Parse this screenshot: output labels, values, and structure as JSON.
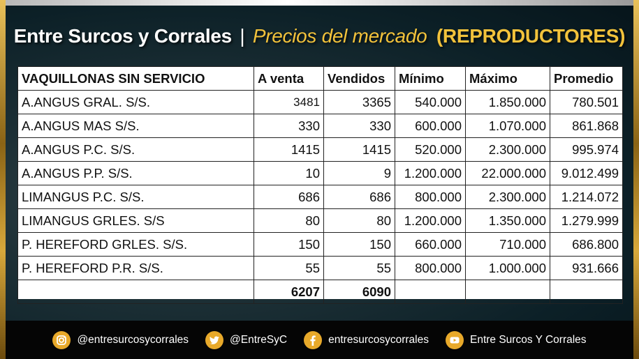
{
  "title": {
    "brand": "Entre Surcos y Corrales",
    "separator": "|",
    "subtitle": "Precios del mercado",
    "tag": "(REPRODUCTORES)"
  },
  "table": {
    "headers": [
      "VAQUILLONAS SIN SERVICIO",
      "A venta",
      "Vendidos",
      "Mínimo",
      "Máximo",
      "Promedio"
    ],
    "rows": [
      {
        "name": "A.ANGUS GRAL. S/S.",
        "a_venta": "3481",
        "vendidos": "3365",
        "minimo": "540.000",
        "maximo": "1.850.000",
        "promedio": "780.501"
      },
      {
        "name": "A.ANGUS MAS S/S.",
        "a_venta": "330",
        "vendidos": "330",
        "minimo": "600.000",
        "maximo": "1.070.000",
        "promedio": "861.868"
      },
      {
        "name": "A.ANGUS P.C. S/S.",
        "a_venta": "1415",
        "vendidos": "1415",
        "minimo": "520.000",
        "maximo": "2.300.000",
        "promedio": "995.974"
      },
      {
        "name": "A.ANGUS P.P. S/S.",
        "a_venta": "10",
        "vendidos": "9",
        "minimo": "1.200.000",
        "maximo": "22.000.000",
        "promedio": "9.012.499"
      },
      {
        "name": "LIMANGUS P.C. S/S.",
        "a_venta": "686",
        "vendidos": "686",
        "minimo": "800.000",
        "maximo": "2.300.000",
        "promedio": "1.214.072"
      },
      {
        "name": "LIMANGUS GRLES. S/S",
        "a_venta": "80",
        "vendidos": "80",
        "minimo": "1.200.000",
        "maximo": "1.350.000",
        "promedio": "1.279.999"
      },
      {
        "name": "P. HEREFORD GRLES. S/S.",
        "a_venta": "150",
        "vendidos": "150",
        "minimo": "660.000",
        "maximo": "710.000",
        "promedio": "686.800"
      },
      {
        "name": "P. HEREFORD P.R. S/S.",
        "a_venta": "55",
        "vendidos": "55",
        "minimo": "800.000",
        "maximo": "1.000.000",
        "promedio": "931.666"
      }
    ],
    "totals": {
      "a_venta": "6207",
      "vendidos": "6090"
    }
  },
  "footer": {
    "instagram": "@entresurcosycorrales",
    "twitter": "@EntreSyC",
    "facebook": "entresurcosycorrales",
    "youtube": "Entre Surcos Y Corrales"
  },
  "colors": {
    "accent_gold": "#f2c23b",
    "icon_gold": "#e8a92a",
    "footer_bg": "#050505"
  },
  "icons": [
    "instagram-icon",
    "twitter-icon",
    "facebook-icon",
    "youtube-icon"
  ]
}
